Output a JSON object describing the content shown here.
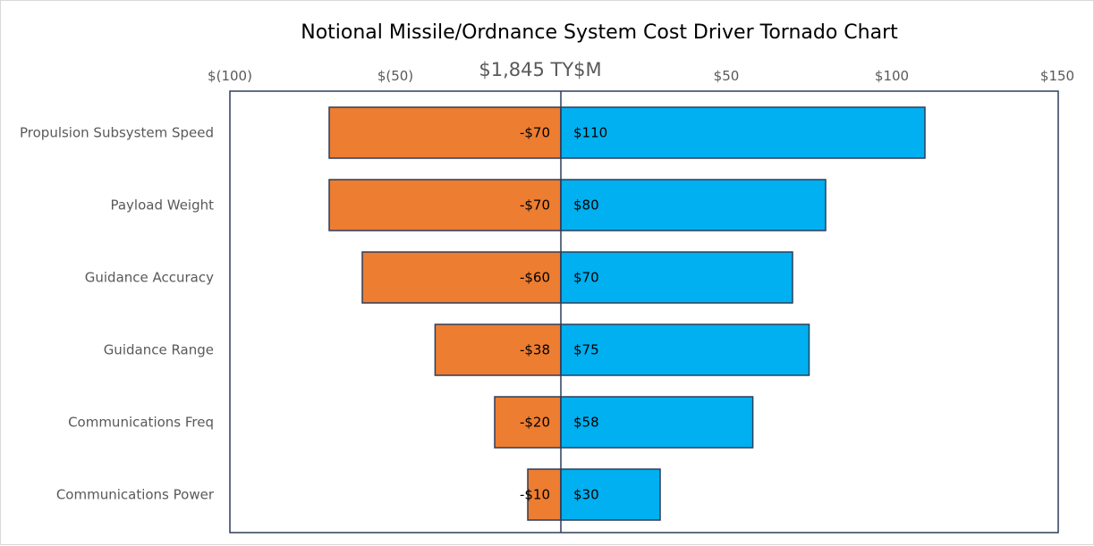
{
  "chart_data": {
    "type": "bar",
    "orientation": "horizontal",
    "title": "Notional Missile/Ordnance System Cost Driver Tornado Chart",
    "baseline_label": "$1,845 TY$M",
    "xlim": [
      -100,
      150
    ],
    "x_ticks": [
      {
        "value": -100,
        "label": "$(100)"
      },
      {
        "value": -50,
        "label": "$(50)"
      },
      {
        "value": 50,
        "label": "$50"
      },
      {
        "value": 100,
        "label": "$100"
      },
      {
        "value": 150,
        "label": "$150"
      }
    ],
    "categories": [
      "Propulsion Subsystem Speed",
      "Payload Weight",
      "Guidance Accuracy",
      "Guidance Range",
      "Communications Freq",
      "Communications Power"
    ],
    "series": [
      {
        "color": "#ED7D31",
        "values": [
          -70,
          -70,
          -60,
          -38,
          -20,
          -10
        ],
        "labels": [
          "-$70",
          "-$70",
          "-$60",
          "-$38",
          "-$20",
          "-$10"
        ]
      },
      {
        "color": "#00B0F0",
        "values": [
          110,
          80,
          70,
          75,
          58,
          30
        ],
        "labels": [
          "$110",
          "$80",
          "$70",
          "$75",
          "$58",
          "$30"
        ]
      }
    ],
    "grid": false,
    "legend": "none"
  }
}
